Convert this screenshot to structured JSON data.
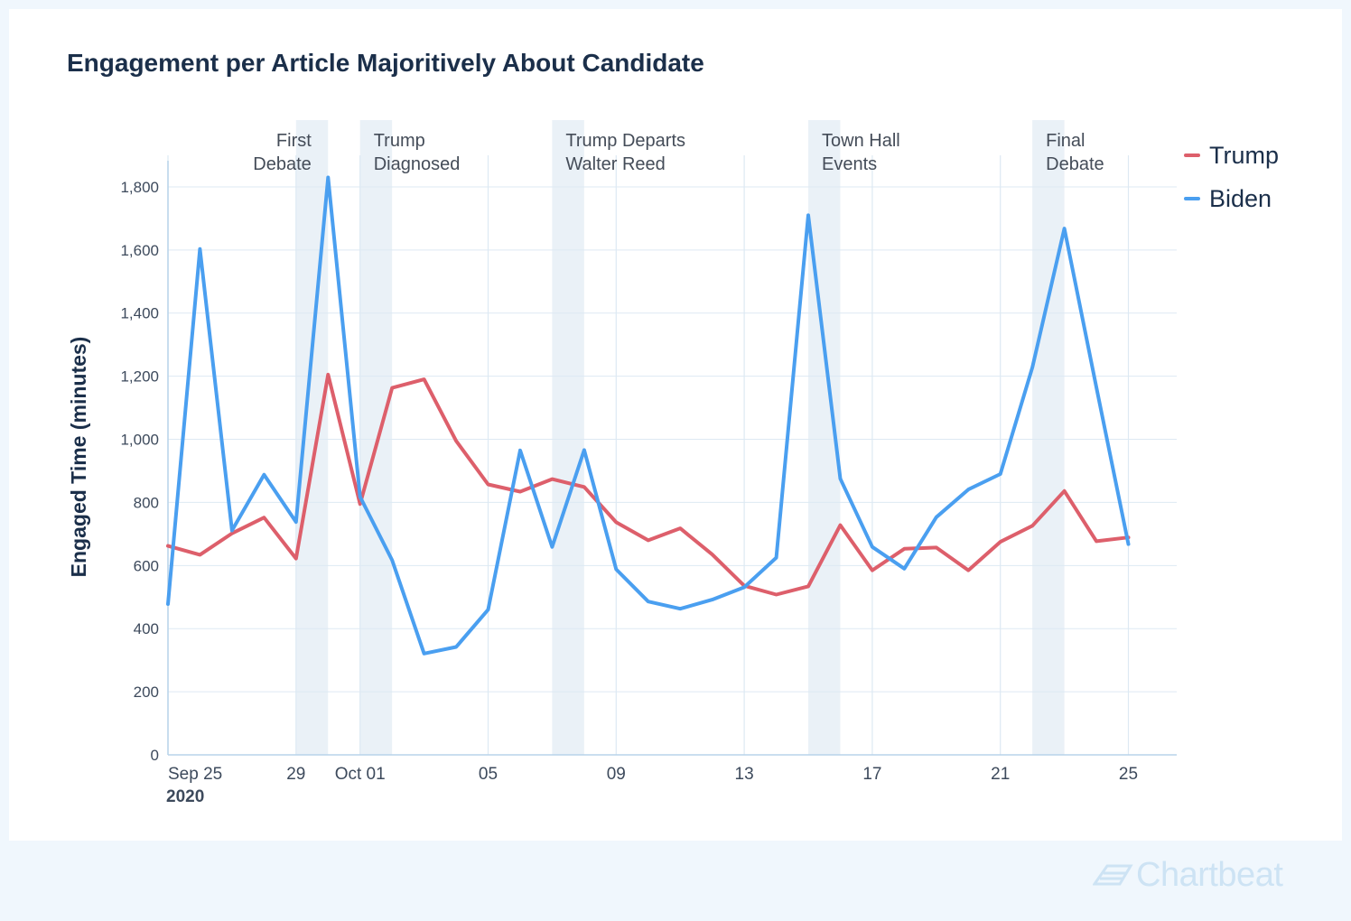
{
  "title": "Engagement per Article Majoritively About Candidate",
  "brand": {
    "name": "Chartbeat",
    "logo_icon": "chartbeat-logo-icon",
    "color": "#cde3f4"
  },
  "colors": {
    "trump": "#dd5f6b",
    "biden": "#4a9ff0",
    "grid": "#dde9f3",
    "event_band": "#eaf1f7",
    "axis_text": "#3d4a5c",
    "title": "#1b2f4a"
  },
  "chart_data": {
    "type": "line",
    "title": "Engagement per Article Majoritively About Candidate",
    "xlabel": "",
    "ylabel": "Engaged Time (minutes)",
    "ylim": [
      0,
      1900
    ],
    "yticks": [
      0,
      200,
      400,
      600,
      800,
      1000,
      1200,
      1400,
      1600,
      1800
    ],
    "ytick_labels": [
      "0",
      "200",
      "400",
      "600",
      "800",
      "1,000",
      "1,200",
      "1,400",
      "1,600",
      "1,800"
    ],
    "x_start": "2020-09-25",
    "x_end": "2020-10-28",
    "x": [
      "2020-09-25",
      "2020-09-26",
      "2020-09-27",
      "2020-09-28",
      "2020-09-29",
      "2020-09-30",
      "2020-10-01",
      "2020-10-02",
      "2020-10-03",
      "2020-10-04",
      "2020-10-05",
      "2020-10-06",
      "2020-10-07",
      "2020-10-08",
      "2020-10-09",
      "2020-10-10",
      "2020-10-11",
      "2020-10-12",
      "2020-10-13",
      "2020-10-14",
      "2020-10-15",
      "2020-10-16",
      "2020-10-17",
      "2020-10-18",
      "2020-10-19",
      "2020-10-20",
      "2020-10-21",
      "2020-10-22",
      "2020-10-23",
      "2020-10-24",
      "2020-10-25",
      "2020-10-26"
    ],
    "xticks": [
      {
        "date": "2020-09-25",
        "label": "Sep 25",
        "sublabel": "2020"
      },
      {
        "date": "2020-09-29",
        "label": "29"
      },
      {
        "date": "2020-10-01",
        "label": "Oct 01"
      },
      {
        "date": "2020-10-05",
        "label": "05"
      },
      {
        "date": "2020-10-09",
        "label": "09"
      },
      {
        "date": "2020-10-13",
        "label": "13"
      },
      {
        "date": "2020-10-17",
        "label": "17"
      },
      {
        "date": "2020-10-21",
        "label": "21"
      },
      {
        "date": "2020-10-25",
        "label": "25"
      }
    ],
    "grid": true,
    "legend_position": "right",
    "series": [
      {
        "name": "Trump",
        "color": "#dd5f6b",
        "values": [
          662,
          634,
          702,
          752,
          622,
          1205,
          795,
          1163,
          1190,
          995,
          857,
          834,
          874,
          849,
          737,
          680,
          718,
          635,
          536,
          508,
          534,
          728,
          585,
          653,
          657,
          585,
          675,
          726,
          836,
          677,
          689,
          null
        ]
      },
      {
        "name": "Biden",
        "color": "#4a9ff0",
        "values": [
          478,
          1603,
          711,
          888,
          738,
          1830,
          818,
          617,
          321,
          342,
          460,
          965,
          659,
          966,
          588,
          486,
          463,
          492,
          531,
          625,
          1710,
          875,
          659,
          590,
          753,
          841,
          890,
          1228,
          1668,
          1164,
          668,
          null
        ]
      }
    ],
    "events": [
      {
        "date": "2020-09-29",
        "lines": [
          "First",
          "Debate"
        ],
        "align": "right"
      },
      {
        "date": "2020-10-01",
        "lines": [
          "Trump",
          "Diagnosed"
        ],
        "align": "left"
      },
      {
        "date": "2020-10-07",
        "lines": [
          "Trump Departs",
          "Walter Reed"
        ],
        "align": "left"
      },
      {
        "date": "2020-10-15",
        "lines": [
          "Town Hall",
          "Events"
        ],
        "align": "left"
      },
      {
        "date": "2020-10-22",
        "lines": [
          "Final",
          "Debate"
        ],
        "align": "left"
      }
    ]
  }
}
